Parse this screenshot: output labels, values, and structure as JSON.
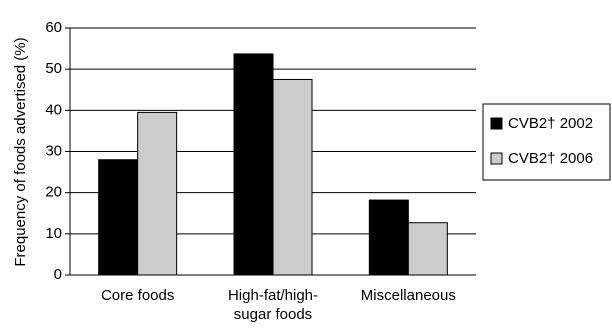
{
  "chart_data": {
    "type": "bar",
    "title": "",
    "xlabel": "",
    "ylabel": "Frequency of foods advertised (%)",
    "ylim": [
      0,
      60
    ],
    "yticks": [
      0,
      10,
      20,
      30,
      40,
      50,
      60
    ],
    "grid": true,
    "legend_position": "right",
    "categories": [
      [
        "Core foods"
      ],
      [
        "High-fat/high-",
        "sugar foods"
      ],
      [
        "Miscellaneous"
      ]
    ],
    "series": [
      {
        "name": "CVB2† 2002",
        "color": "#000000",
        "values": [
          28,
          53.7,
          18.2
        ]
      },
      {
        "name": "CVB2† 2006",
        "color": "#cccccc",
        "values": [
          39.5,
          47.5,
          12.7
        ]
      }
    ]
  }
}
